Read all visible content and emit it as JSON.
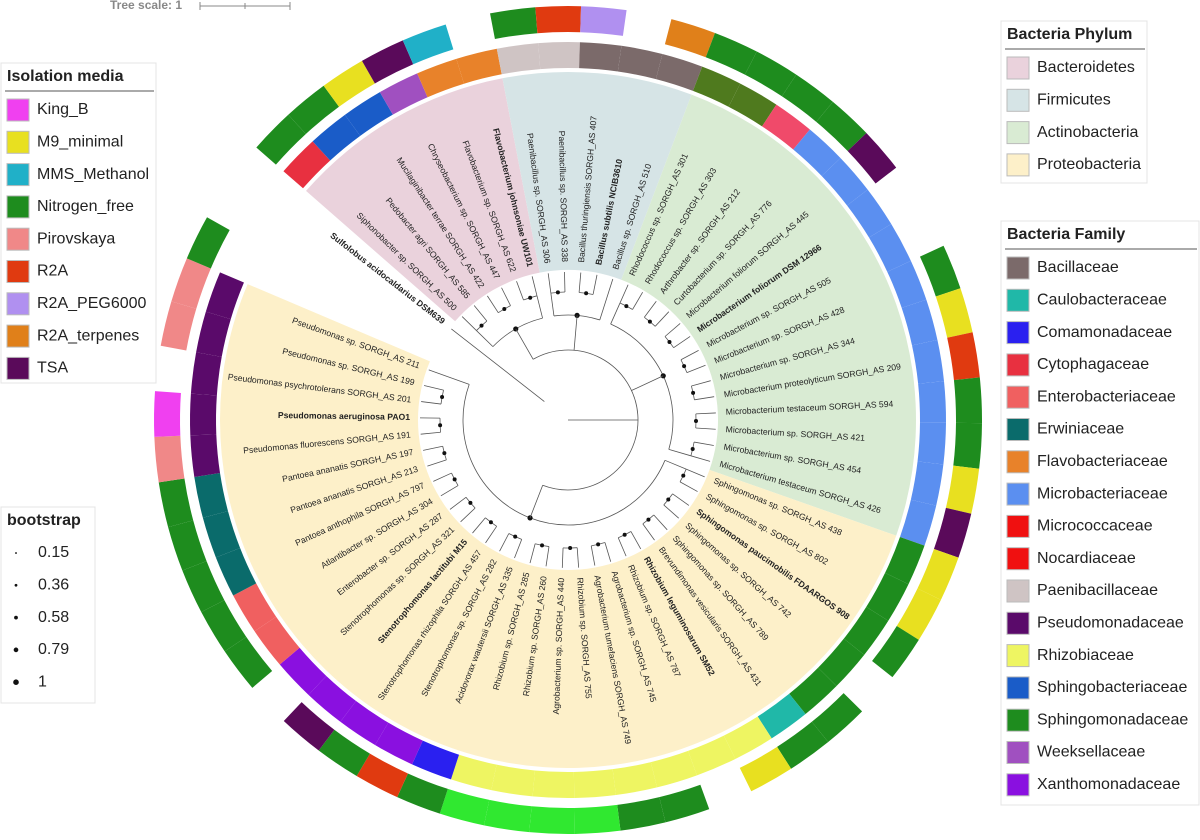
{
  "tree_scale": "Tree scale: 1",
  "legends": {
    "media": {
      "title": "Isolation media",
      "items": [
        {
          "name": "King_B",
          "color": "#f040f0"
        },
        {
          "name": "M9_minimal",
          "color": "#e8e020"
        },
        {
          "name": "MMS_Methanol",
          "color": "#20b0c8"
        },
        {
          "name": "Nitrogen_free",
          "color": "#1e8c1e"
        },
        {
          "name": "Pirovskaya",
          "color": "#f08888"
        },
        {
          "name": "R2A",
          "color": "#e03a10"
        },
        {
          "name": "R2A_PEG6000",
          "color": "#b090f0"
        },
        {
          "name": "R2A_terpenes",
          "color": "#e0801a"
        },
        {
          "name": "TSA",
          "color": "#5a0a5a"
        }
      ]
    },
    "phylum": {
      "title": "Bacteria Phylum",
      "items": [
        {
          "name": "Bacteroidetes",
          "color": "#ead2dc"
        },
        {
          "name": "Firmicutes",
          "color": "#d6e4e6"
        },
        {
          "name": "Actinobacteria",
          "color": "#d9ebd3"
        },
        {
          "name": "Proteobacteria",
          "color": "#fdf0c9"
        }
      ]
    },
    "family": {
      "title": "Bacteria Family",
      "items": [
        {
          "name": "Bacillaceae",
          "color": "#7b6a6a"
        },
        {
          "name": "Caulobacteraceae",
          "color": "#20b8a8"
        },
        {
          "name": "Comamonadaceae",
          "color": "#2a20f0"
        },
        {
          "name": "Cytophagaceae",
          "color": "#e83040"
        },
        {
          "name": "Enterobacteriaceae",
          "color": "#f06060"
        },
        {
          "name": "Erwiniaceae",
          "color": "#0a6b6b"
        },
        {
          "name": "Flavobacteriaceae",
          "color": "#e8822a"
        },
        {
          "name": "Microbacteriaceae",
          "color": "#5b8ff0"
        },
        {
          "name": "Micrococcaceae",
          "color": "#f01010"
        },
        {
          "name": "Nocardiaceae",
          "color": "#f01010"
        },
        {
          "name": "Paenibacillaceae",
          "color": "#cfc4c4"
        },
        {
          "name": "Pseudomonadaceae",
          "color": "#5a0a6a"
        },
        {
          "name": "Rhizobiaceae",
          "color": "#eef562"
        },
        {
          "name": "Sphingobacteriaceae",
          "color": "#1a5cc8"
        },
        {
          "name": "Sphingomonadaceae",
          "color": "#1e8c1e"
        },
        {
          "name": "Weeksellaceae",
          "color": "#a050c0"
        },
        {
          "name": "Xanthomonadaceae",
          "color": "#8a10e0"
        }
      ]
    },
    "bootstrap": {
      "title": "bootstrap",
      "items": [
        0.15,
        0.36,
        0.58,
        0.79,
        1
      ]
    }
  },
  "leaves": [
    {
      "label": "Sulfolobus acidocaldarius DSM639",
      "bold": true
    },
    {
      "label": "Siphonobacter sp. SORGH_AS 500",
      "bold": false
    },
    {
      "label": "Pedobacter agri SORGH_AS 585",
      "bold": false
    },
    {
      "label": "Mucilaginibacter terrae SORGH_AS 422",
      "bold": false
    },
    {
      "label": "Chryseobacterium sp. SORGH_AS 447",
      "bold": false
    },
    {
      "label": "Flavobacterium sp. SORGH_AS 622",
      "bold": false
    },
    {
      "label": "Flavobacterium johnsoniae UW101",
      "bold": true
    },
    {
      "label": "Paenibacillus sp. SORGH_AS 306",
      "bold": false
    },
    {
      "label": "Paenibacillus sp. SORGH_AS 338",
      "bold": false
    },
    {
      "label": "Bacillus thuringiensis SORGH_AS 407",
      "bold": false
    },
    {
      "label": "Bacillus subtilis NCIB3610",
      "bold": true
    },
    {
      "label": "Bacillus sp. SORGH_AS 510",
      "bold": false
    },
    {
      "label": "Rhodococcus sp. SORGH_AS 301",
      "bold": false
    },
    {
      "label": "Rhodococcus sp. SORGH_AS 303",
      "bold": false
    },
    {
      "label": "Arthrobacter sp. SORGH_AS 212",
      "bold": false
    },
    {
      "label": "Curtobacterium sp. SORGH_AS 776",
      "bold": false
    },
    {
      "label": "Microbacterium foliorum SORGH_AS 445",
      "bold": false
    },
    {
      "label": "Microbacterium foliorum DSM 12966",
      "bold": true
    },
    {
      "label": "Microbacterium sp. SORGH_AS 505",
      "bold": false
    },
    {
      "label": "Microbacterium sp. SORGH_AS 428",
      "bold": false
    },
    {
      "label": "Microbacterium sp. SORGH_AS 344",
      "bold": false
    },
    {
      "label": "Microbacterium proteolyticum SORGH_AS 209",
      "bold": false
    },
    {
      "label": "Microbacterium testaceum SORGH_AS 594",
      "bold": false
    },
    {
      "label": "Microbacterium sp. SORGH_AS 421",
      "bold": false
    },
    {
      "label": "Microbacterium sp. SORGH_AS 454",
      "bold": false
    },
    {
      "label": "Microbacterium testaceum SORGH_AS 426",
      "bold": false
    },
    {
      "label": "Sphingomonas sp. SORGH_AS 438",
      "bold": false
    },
    {
      "label": "Sphingomonas sp. SORGH_AS 802",
      "bold": false
    },
    {
      "label": "Sphingomonas paucimobilis FDAARGOS 908",
      "bold": true
    },
    {
      "label": "Sphingomonas sp. SORGH_AS 742",
      "bold": false
    },
    {
      "label": "Sphingomonas sp. SORGH_AS 789",
      "bold": false
    },
    {
      "label": "Brevundimonas vesicularis SORGH_AS 431",
      "bold": false
    },
    {
      "label": "Rhizobium leguminosarum SM52",
      "bold": true
    },
    {
      "label": "Rhizobium sp. SORGH_AS 787",
      "bold": false
    },
    {
      "label": "Agrobacterium sp. SORGH_AS 745",
      "bold": false
    },
    {
      "label": "Agrobacterium tumefaciens SORGH_AS 749",
      "bold": false
    },
    {
      "label": "Rhizobium sp. SORGH_AS 755",
      "bold": false
    },
    {
      "label": "Agrobacterium sp. SORGH_AS 440",
      "bold": false
    },
    {
      "label": "Rhizobium sp. SORGH_AS 260",
      "bold": false
    },
    {
      "label": "Rhizobium sp. SORGH_AS 285",
      "bold": false
    },
    {
      "label": "Acidovorax wautersii SORGH_AS 335",
      "bold": false
    },
    {
      "label": "Stenotrophomonas sp. SORGH_AS 282",
      "bold": false
    },
    {
      "label": "Stenotrophomonas rhizophila SORGH_AS 457",
      "bold": false
    },
    {
      "label": "Stenotrophomonas lactitubi M15",
      "bold": true
    },
    {
      "label": "Stenotrophomonas sp. SORGH_AS 321",
      "bold": false
    },
    {
      "label": "Enterobacter sp. SORGH_AS 287",
      "bold": false
    },
    {
      "label": "Atlantibacter sp. SORGH_AS 304",
      "bold": false
    },
    {
      "label": "Pantoea anthophila SORGH_AS 797",
      "bold": false
    },
    {
      "label": "Pantoea ananatis SORGH_AS 213",
      "bold": false
    },
    {
      "label": "Pantoea ananatis SORGH_AS 197",
      "bold": false
    },
    {
      "label": "Pseudomonas fluorescens SORGH_AS 191",
      "bold": false
    },
    {
      "label": "Pseudomonas aeruginosa PAO1",
      "bold": true
    },
    {
      "label": "Pseudomonas psychrotolerans SORGH_AS 201",
      "bold": false
    },
    {
      "label": "Pseudomonas sp. SORGH_AS 199",
      "bold": false
    },
    {
      "label": "Pseudomonas sp. SORGH_AS 211",
      "bold": false
    }
  ]
}
